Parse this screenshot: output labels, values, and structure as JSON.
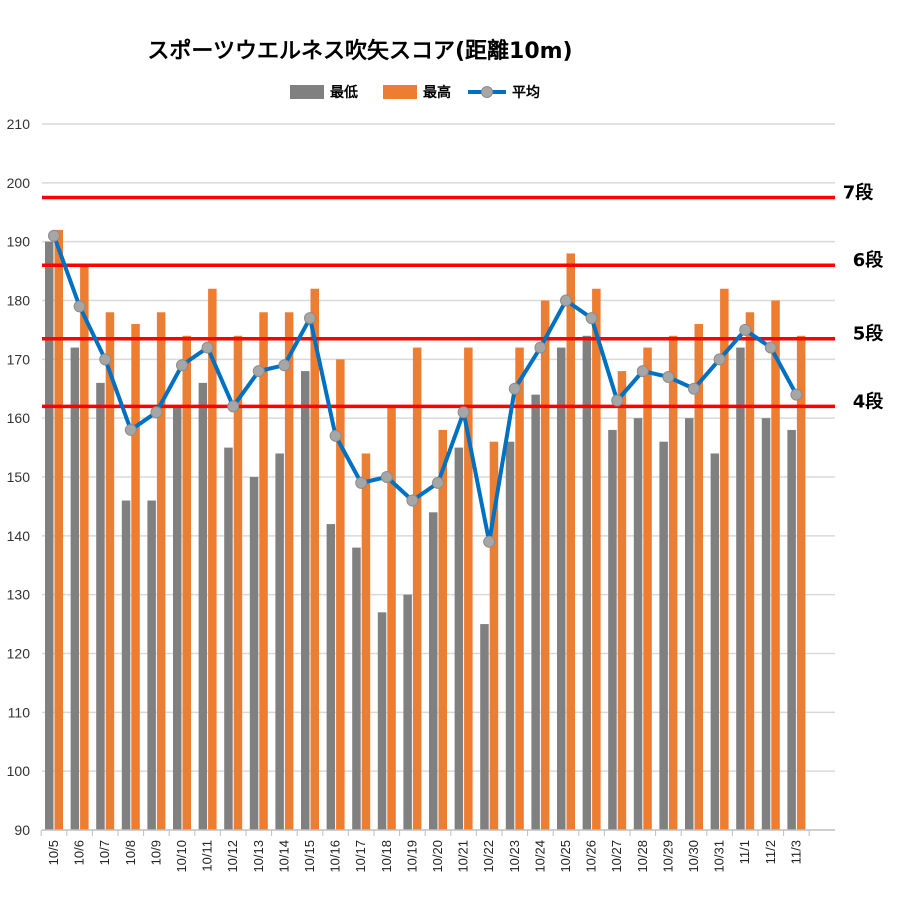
{
  "chart_data": {
    "type": "bar",
    "title": "スポーツウエルネス吹矢スコア(距離10m)",
    "categories": [
      "10/5",
      "10/6",
      "10/7",
      "10/8",
      "10/9",
      "10/10",
      "10/11",
      "10/12",
      "10/13",
      "10/14",
      "10/15",
      "10/16",
      "10/17",
      "10/18",
      "10/19",
      "10/20",
      "10/21",
      "10/22",
      "10/23",
      "10/24",
      "10/25",
      "10/26",
      "10/27",
      "10/28",
      "10/29",
      "10/30",
      "10/31",
      "11/1",
      "11/2",
      "11/3"
    ],
    "series": [
      {
        "name": "最低",
        "kind": "bar",
        "color": "#808080",
        "values": [
          190,
          172,
          166,
          146,
          146,
          162,
          166,
          155,
          150,
          154,
          168,
          142,
          138,
          127,
          130,
          144,
          155,
          125,
          156,
          164,
          172,
          174,
          158,
          160,
          156,
          160,
          154,
          172,
          160,
          158
        ]
      },
      {
        "name": "最高",
        "kind": "bar",
        "color": "#ED7D31",
        "values": [
          192,
          186,
          178,
          176,
          178,
          174,
          182,
          174,
          178,
          178,
          182,
          170,
          154,
          162,
          172,
          158,
          172,
          156,
          172,
          180,
          188,
          182,
          168,
          172,
          174,
          176,
          182,
          178,
          180,
          174
        ]
      },
      {
        "name": "平均",
        "kind": "line",
        "color": "#0070C0",
        "marker_color": "#A6A6A6",
        "values": [
          191,
          179,
          170,
          158,
          161,
          169,
          172,
          162,
          168,
          169,
          177,
          157,
          149,
          150,
          146,
          149,
          161,
          139,
          165,
          172,
          180,
          177,
          163,
          168,
          167,
          165,
          170,
          175,
          172,
          164
        ]
      }
    ],
    "ylim": [
      90,
      210
    ],
    "yticks": [
      90,
      100,
      110,
      120,
      130,
      140,
      150,
      160,
      170,
      180,
      190,
      200,
      210
    ],
    "grid": true,
    "legend_position": "top-center",
    "reference_lines": [
      {
        "label": "7段",
        "value": 197.5,
        "color": "#FF0000"
      },
      {
        "label": "6段",
        "value": 186,
        "color": "#FF0000"
      },
      {
        "label": "5段",
        "value": 173.5,
        "color": "#FF0000"
      },
      {
        "label": "4段",
        "value": 162,
        "color": "#FF0000"
      }
    ]
  }
}
